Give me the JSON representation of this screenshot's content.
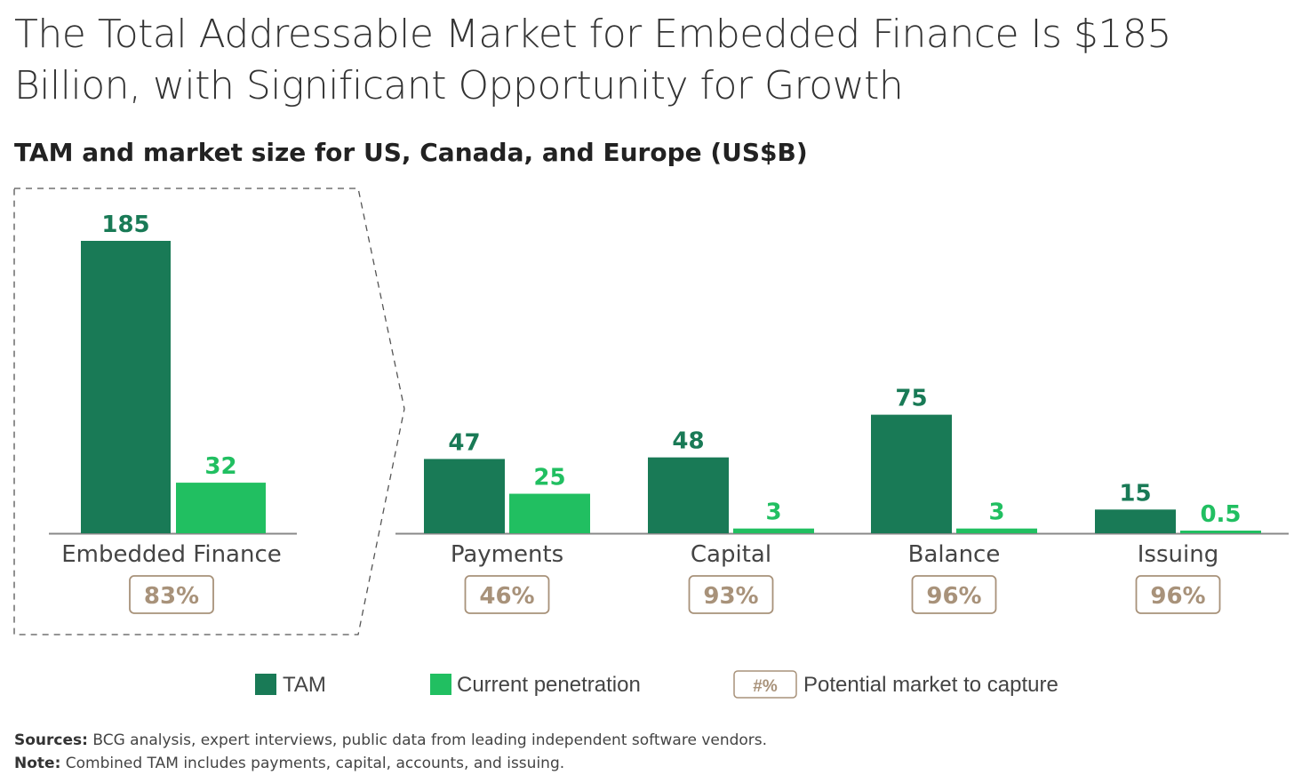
{
  "title": "The Total Addressable Market for Embedded Finance Is $185 Billion, with Significant Opportunity for Growth",
  "chart_data": {
    "type": "bar",
    "title": "TAM and market size for US, Canada, and Europe (US$B)",
    "categories": [
      "Embedded Finance",
      "Payments",
      "Capital",
      "Balance",
      "Issuing"
    ],
    "series": [
      {
        "name": "TAM",
        "color": "#197a56",
        "values": [
          185,
          47,
          48,
          75,
          15
        ],
        "labels": [
          "185",
          "47",
          "48",
          "75",
          "15"
        ]
      },
      {
        "name": "Current penetration",
        "color": "#21bf61",
        "values": [
          32,
          25,
          3,
          3,
          0.5
        ],
        "labels": [
          "32",
          "25",
          "3",
          "3",
          "0.5"
        ]
      }
    ],
    "potential": [
      "83%",
      "46%",
      "93%",
      "96%",
      "96%"
    ],
    "potential_color": "#a8927a",
    "legend": {
      "tam": "TAM",
      "penetration": "Current penetration",
      "potential_symbol": "#%",
      "potential": "Potential market to capture",
      "placement": "bottom"
    },
    "xlabel": "",
    "ylabel": "",
    "ylim": [
      0,
      185
    ],
    "grid": false
  },
  "notes": {
    "sources_label": "Sources:",
    "sources": " BCG analysis, expert interviews, public data from leading independent software vendors.",
    "note_label": "Note:",
    "note": " Combined TAM includes payments, capital, accounts, and issuing."
  }
}
